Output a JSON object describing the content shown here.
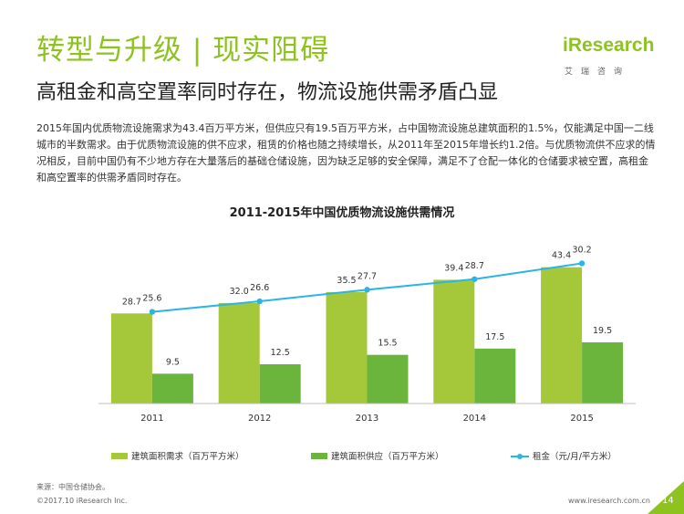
{
  "header": {
    "title": "转型与升级 | 现实阻碍",
    "subtitle": "高租金和高空置率同时存在，物流设施供需矛盾凸显",
    "intro": "2015年国内优质物流设施需求为43.4百万平方米，但供应只有19.5百万平方米，占中国物流设施总建筑面积的1.5%，仅能满足中国一二线城市的半数需求。由于优质物流设施的供不应求，租赁的价格也随之持续增长，从2011年至2015年增长约1.2倍。与优质物流供不应求的情况相反，目前中国仍有不少地方存在大量落后的基础仓储设施，因为缺乏足够的安全保障，满足不了仓配一体化的仓储要求被空置，高租金和高空置率的供需矛盾同时存在。"
  },
  "logo": {
    "main": "iResearch",
    "sub": "艾瑞咨询"
  },
  "chart_data": {
    "type": "bar",
    "title": "2011-2015年中国优质物流设施供需情况",
    "categories": [
      "2011",
      "2012",
      "2013",
      "2014",
      "2015"
    ],
    "series": [
      {
        "name": "建筑面积需求（百万平方米）",
        "type": "bar",
        "color": "#a5c83a",
        "values": [
          28.7,
          32.0,
          35.5,
          39.4,
          43.4
        ],
        "labels": [
          "28.7",
          "32.0",
          "35.5",
          "39.4",
          "43.4"
        ]
      },
      {
        "name": "建筑面积供应（百万平方米）",
        "type": "bar",
        "color": "#6bb53d",
        "values": [
          9.5,
          12.5,
          15.5,
          17.5,
          19.5
        ],
        "labels": [
          "9.5",
          "12.5",
          "15.5",
          "17.5",
          "19.5"
        ]
      },
      {
        "name": "租金（元/月/平方米）",
        "type": "line",
        "color": "#2bb5e6",
        "values": [
          25.6,
          26.6,
          27.7,
          28.7,
          30.2
        ],
        "labels": [
          "25.6",
          "26.6",
          "27.7",
          "28.7",
          "30.2"
        ]
      }
    ],
    "bar_ylim": [
      0,
      50
    ],
    "line_ylim": [
      16.9,
      31.8
    ],
    "grid": false,
    "legend": "bottom"
  },
  "footer": {
    "source": "来源：中国仓储协会。",
    "copyright": "©2017.10 iResearch Inc.",
    "website": "www.iresearch.com.cn",
    "page": "14"
  }
}
